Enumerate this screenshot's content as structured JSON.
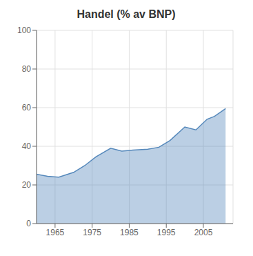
{
  "chart_data": {
    "type": "area",
    "title": "Handel (% av BNP)",
    "x": [
      1960,
      1963,
      1966,
      1970,
      1973,
      1976,
      1980,
      1983,
      1986,
      1990,
      1993,
      1996,
      2000,
      2003,
      2006,
      2008,
      2011
    ],
    "values": [
      25.5,
      24.5,
      24.0,
      26.5,
      30.0,
      34.5,
      39.0,
      37.5,
      38.0,
      38.5,
      39.5,
      43.0,
      50.0,
      48.5,
      54.0,
      55.5,
      59.5
    ],
    "color": "#5588bb",
    "xlim": [
      1960,
      2013
    ],
    "ylim": [
      0,
      100
    ],
    "xticks": [
      1965,
      1975,
      1985,
      1995,
      2005
    ],
    "yticks": [
      0,
      20,
      40,
      60,
      80,
      100
    ],
    "grid": true
  }
}
